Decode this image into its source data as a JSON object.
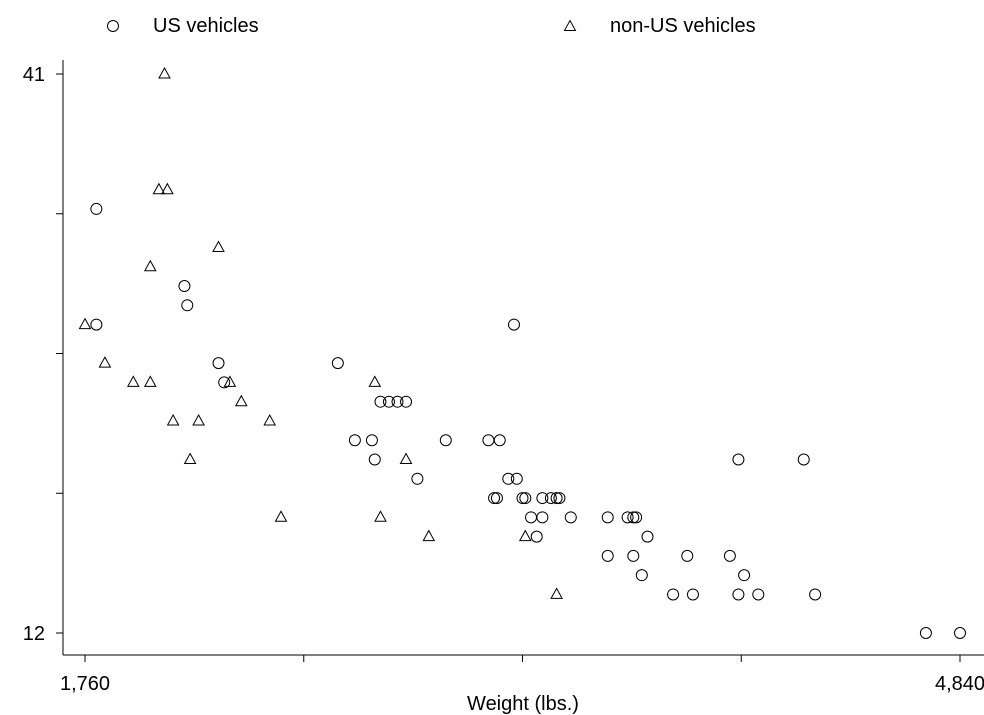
{
  "chart_data": {
    "type": "scatter",
    "title": "",
    "xlabel": "Weight (lbs.)",
    "ylabel": "",
    "xlim": [
      1760,
      4840
    ],
    "ylim": [
      12,
      41
    ],
    "x_tick_labels": [
      "1,760",
      "4,840"
    ],
    "y_tick_labels": [
      "41",
      "12"
    ],
    "grid": false,
    "legend": {
      "position": "top",
      "entries": [
        "US vehicles",
        "non-US vehicles"
      ]
    },
    "series": [
      {
        "name": "US vehicles",
        "marker": "circle",
        "points": [
          [
            1800,
            34
          ],
          [
            1800,
            28
          ],
          [
            2110,
            30
          ],
          [
            2120,
            29
          ],
          [
            2230,
            26
          ],
          [
            2250,
            25
          ],
          [
            2650,
            26
          ],
          [
            2710,
            22
          ],
          [
            2770,
            22
          ],
          [
            2780,
            21
          ],
          [
            2800,
            24
          ],
          [
            2830,
            24
          ],
          [
            2860,
            24
          ],
          [
            2890,
            24
          ],
          [
            2930,
            20
          ],
          [
            3030,
            22
          ],
          [
            3180,
            22
          ],
          [
            3200,
            19
          ],
          [
            3210,
            19
          ],
          [
            3220,
            22
          ],
          [
            3250,
            20
          ],
          [
            3270,
            28
          ],
          [
            3280,
            20
          ],
          [
            3300,
            19
          ],
          [
            3310,
            19
          ],
          [
            3330,
            18
          ],
          [
            3350,
            17
          ],
          [
            3370,
            19
          ],
          [
            3370,
            18
          ],
          [
            3400,
            19
          ],
          [
            3420,
            19
          ],
          [
            3430,
            19
          ],
          [
            3470,
            18
          ],
          [
            3600,
            18
          ],
          [
            3600,
            16
          ],
          [
            3670,
            18
          ],
          [
            3690,
            18
          ],
          [
            3690,
            16
          ],
          [
            3700,
            18
          ],
          [
            3720,
            15
          ],
          [
            3740,
            17
          ],
          [
            3830,
            14
          ],
          [
            3880,
            16
          ],
          [
            3900,
            14
          ],
          [
            4030,
            16
          ],
          [
            4060,
            21
          ],
          [
            4060,
            14
          ],
          [
            4080,
            15
          ],
          [
            4130,
            14
          ],
          [
            4290,
            21
          ],
          [
            4330,
            14
          ],
          [
            4720,
            12
          ],
          [
            4840,
            12
          ]
        ]
      },
      {
        "name": "non-US vehicles",
        "marker": "triangle",
        "points": [
          [
            1760,
            28
          ],
          [
            1830,
            26
          ],
          [
            1930,
            25
          ],
          [
            1990,
            31
          ],
          [
            1990,
            25
          ],
          [
            2020,
            35
          ],
          [
            2040,
            41
          ],
          [
            2050,
            35
          ],
          [
            2070,
            23
          ],
          [
            2130,
            21
          ],
          [
            2160,
            23
          ],
          [
            2230,
            32
          ],
          [
            2270,
            25
          ],
          [
            2310,
            24
          ],
          [
            2410,
            23
          ],
          [
            2450,
            18
          ],
          [
            2780,
            25
          ],
          [
            2800,
            18
          ],
          [
            2890,
            21
          ],
          [
            2970,
            17
          ],
          [
            3310,
            17
          ],
          [
            3420,
            14
          ]
        ]
      }
    ]
  }
}
